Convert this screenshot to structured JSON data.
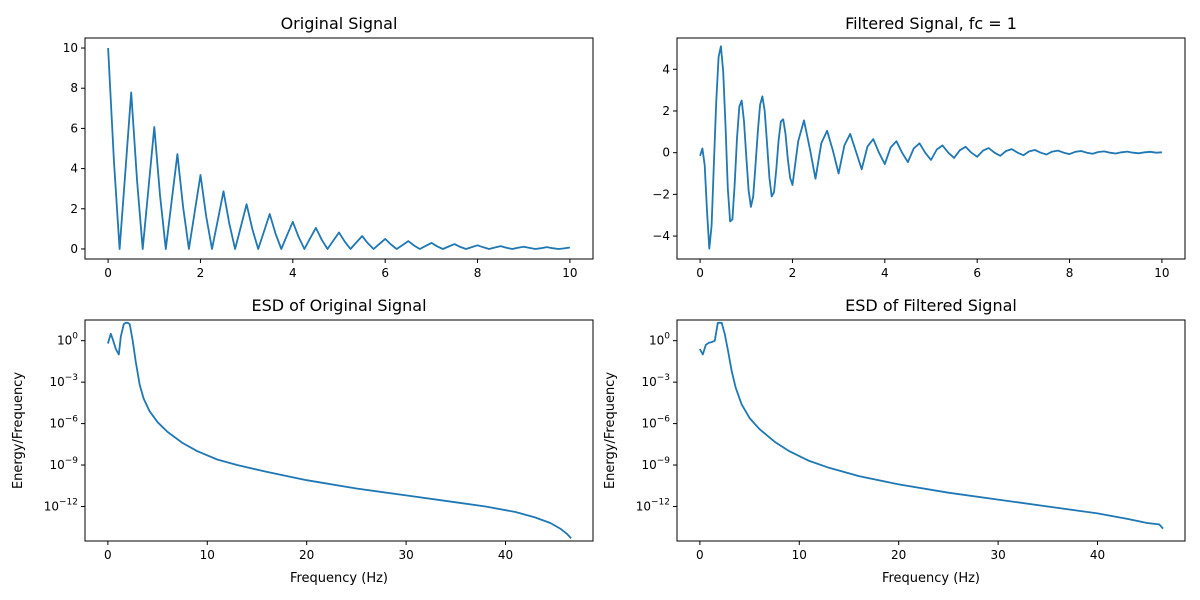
{
  "chart_data": [
    {
      "type": "line",
      "title": "Original Signal",
      "xlabel": "",
      "ylabel": "",
      "xlim": [
        -0.5,
        10.5
      ],
      "ylim": [
        -0.5,
        10.5
      ],
      "xticks": [
        0,
        2,
        4,
        6,
        8,
        10
      ],
      "xtick_labels": [
        "0",
        "2",
        "4",
        "6",
        "8",
        "10"
      ],
      "yticks": [
        0,
        2,
        4,
        6,
        8,
        10
      ],
      "ytick_labels": [
        "0",
        "2",
        "4",
        "6",
        "8",
        "10"
      ],
      "yscale": "linear",
      "grid": false,
      "color": "#1f77b4",
      "x": [
        0,
        0.125,
        0.25,
        0.375,
        0.5,
        0.625,
        0.75,
        0.875,
        1.0,
        1.125,
        1.25,
        1.375,
        1.5,
        1.625,
        1.75,
        1.875,
        2.0,
        2.125,
        2.25,
        2.375,
        2.5,
        2.625,
        2.75,
        2.875,
        3.0,
        3.125,
        3.25,
        3.375,
        3.5,
        3.625,
        3.75,
        3.875,
        4.0,
        4.125,
        4.25,
        4.375,
        4.5,
        4.625,
        4.75,
        4.875,
        5.0,
        5.125,
        5.25,
        5.375,
        5.5,
        5.625,
        5.75,
        5.875,
        6.0,
        6.125,
        6.25,
        6.375,
        6.5,
        6.625,
        6.75,
        6.875,
        7.0,
        7.125,
        7.25,
        7.375,
        7.5,
        7.625,
        7.75,
        7.875,
        8.0,
        8.125,
        8.25,
        8.375,
        8.5,
        8.625,
        8.75,
        8.875,
        9.0,
        9.125,
        9.25,
        9.375,
        9.5,
        9.625,
        9.75,
        9.875,
        10.0
      ],
      "y": [
        10.0,
        4.41,
        0.0,
        3.87,
        7.79,
        3.44,
        0.0,
        3.03,
        6.07,
        2.68,
        0.0,
        2.36,
        4.72,
        2.09,
        0.0,
        1.84,
        3.68,
        1.62,
        0.0,
        1.43,
        2.87,
        1.26,
        0.0,
        1.12,
        2.23,
        0.98,
        0.0,
        0.87,
        1.74,
        0.77,
        0.0,
        0.68,
        1.35,
        0.6,
        0.0,
        0.53,
        1.05,
        0.46,
        0.0,
        0.41,
        0.82,
        0.36,
        0.0,
        0.32,
        0.64,
        0.28,
        0.0,
        0.25,
        0.5,
        0.22,
        0.0,
        0.19,
        0.39,
        0.17,
        0.0,
        0.15,
        0.3,
        0.13,
        0.0,
        0.12,
        0.24,
        0.1,
        0.0,
        0.09,
        0.18,
        0.08,
        0.0,
        0.07,
        0.14,
        0.06,
        0.0,
        0.06,
        0.11,
        0.05,
        0.0,
        0.04,
        0.09,
        0.04,
        0.0,
        0.03,
        0.07
      ]
    },
    {
      "type": "line",
      "title": "Filtered Signal, fc = 1",
      "xlabel": "",
      "ylabel": "",
      "xlim": [
        -0.5,
        10.5
      ],
      "ylim": [
        -5.1,
        5.5
      ],
      "xticks": [
        0,
        2,
        4,
        6,
        8,
        10
      ],
      "xtick_labels": [
        "0",
        "2",
        "4",
        "6",
        "8",
        "10"
      ],
      "yticks": [
        -4,
        -2,
        0,
        2,
        4
      ],
      "ytick_labels": [
        "−4",
        "−2",
        "0",
        "2",
        "4"
      ],
      "yscale": "linear",
      "grid": false,
      "color": "#1f77b4",
      "x": [
        0,
        0.05,
        0.1,
        0.15,
        0.2,
        0.25,
        0.3,
        0.35,
        0.4,
        0.45,
        0.5,
        0.55,
        0.6,
        0.65,
        0.7,
        0.75,
        0.8,
        0.85,
        0.9,
        0.95,
        1.0,
        1.05,
        1.1,
        1.15,
        1.2,
        1.25,
        1.3,
        1.35,
        1.4,
        1.45,
        1.5,
        1.55,
        1.6,
        1.65,
        1.7,
        1.75,
        1.8,
        1.85,
        1.9,
        1.95,
        2.0,
        2.125,
        2.25,
        2.375,
        2.5,
        2.625,
        2.75,
        2.875,
        3.0,
        3.125,
        3.25,
        3.375,
        3.5,
        3.625,
        3.75,
        3.875,
        4.0,
        4.125,
        4.25,
        4.375,
        4.5,
        4.625,
        4.75,
        4.875,
        5.0,
        5.125,
        5.25,
        5.375,
        5.5,
        5.625,
        5.75,
        5.875,
        6.0,
        6.125,
        6.25,
        6.375,
        6.5,
        6.625,
        6.75,
        6.875,
        7.0,
        7.125,
        7.25,
        7.375,
        7.5,
        7.625,
        7.75,
        7.875,
        8.0,
        8.125,
        8.25,
        8.375,
        8.5,
        8.625,
        8.75,
        8.875,
        9.0,
        9.125,
        9.25,
        9.375,
        9.5,
        9.625,
        9.75,
        9.875,
        10.0
      ],
      "y": [
        -0.15,
        0.2,
        -0.6,
        -2.8,
        -4.6,
        -3.5,
        -0.5,
        2.5,
        4.6,
        5.1,
        3.9,
        1.3,
        -1.7,
        -3.3,
        -3.2,
        -1.5,
        0.7,
        2.2,
        2.5,
        1.5,
        -0.2,
        -1.8,
        -2.6,
        -2.1,
        -0.6,
        1.0,
        2.3,
        2.7,
        2.0,
        0.4,
        -1.2,
        -2.1,
        -1.9,
        -0.8,
        0.6,
        1.5,
        1.6,
        0.9,
        -0.3,
        -1.2,
        -1.55,
        0.55,
        1.55,
        0.2,
        -1.25,
        0.45,
        1.05,
        0.1,
        -1.0,
        0.35,
        0.9,
        0.05,
        -0.8,
        0.3,
        0.65,
        0.0,
        -0.55,
        0.25,
        0.55,
        0.0,
        -0.45,
        0.2,
        0.45,
        0.0,
        -0.35,
        0.15,
        0.35,
        0.0,
        -0.25,
        0.12,
        0.28,
        0.0,
        -0.2,
        0.1,
        0.22,
        0.0,
        -0.15,
        0.08,
        0.17,
        0.0,
        -0.12,
        0.06,
        0.13,
        0.0,
        -0.09,
        0.05,
        0.1,
        0.0,
        -0.07,
        0.04,
        0.08,
        0.0,
        -0.05,
        0.03,
        0.06,
        0.0,
        -0.04,
        0.02,
        0.05,
        0.0,
        -0.03,
        0.02,
        0.04,
        0.0,
        0.02
      ]
    },
    {
      "type": "line",
      "title": "ESD of Original Signal",
      "xlabel": "Frequency (Hz)",
      "ylabel": "Energy/Frequency",
      "xlim": [
        -2.3,
        48.8
      ],
      "ylim": [
        -14.5,
        1.5
      ],
      "yscale": "log",
      "xticks": [
        0,
        10,
        20,
        30,
        40
      ],
      "xtick_labels": [
        "0",
        "10",
        "20",
        "30",
        "40"
      ],
      "yticks": [
        0,
        -3,
        -6,
        -9,
        -12
      ],
      "ytick_labels": [
        "10",
        "10",
        "10",
        "10",
        "10"
      ],
      "ytick_exponents": [
        "0",
        "−3",
        "−6",
        "−9",
        "−12"
      ],
      "grid": false,
      "color": "#1f77b4",
      "x": [
        0,
        0.3,
        0.5,
        0.8,
        1.1,
        1.3,
        1.6,
        1.8,
        2.0,
        2.2,
        2.5,
        2.8,
        3.2,
        3.6,
        4.2,
        5.0,
        6.0,
        7.5,
        9.0,
        11,
        13,
        16,
        20,
        25,
        30,
        35,
        38,
        41,
        43,
        44.5,
        45.5,
        46.2,
        46.6
      ],
      "y": [
        -0.2,
        0.5,
        0.1,
        -0.6,
        -1.0,
        0.3,
        1.2,
        1.3,
        1.3,
        1.2,
        0.0,
        -1.5,
        -3.2,
        -4.2,
        -5.1,
        -5.9,
        -6.6,
        -7.4,
        -8.0,
        -8.6,
        -9.0,
        -9.5,
        -10.1,
        -10.7,
        -11.2,
        -11.7,
        -12.0,
        -12.4,
        -12.8,
        -13.2,
        -13.6,
        -14.0,
        -14.3
      ]
    },
    {
      "type": "line",
      "title": "ESD of Filtered Signal",
      "xlabel": "Frequency (Hz)",
      "ylabel": "Energy/Frequency",
      "xlim": [
        -2.3,
        48.8
      ],
      "ylim": [
        -14.5,
        1.5
      ],
      "yscale": "log",
      "xticks": [
        0,
        10,
        20,
        30,
        40
      ],
      "xtick_labels": [
        "0",
        "10",
        "20",
        "30",
        "40"
      ],
      "yticks": [
        0,
        -3,
        -6,
        -9,
        -12
      ],
      "ytick_labels": [
        "10",
        "10",
        "10",
        "10",
        "10"
      ],
      "ytick_exponents": [
        "0",
        "−3",
        "−6",
        "−9",
        "−12"
      ],
      "grid": false,
      "color": "#1f77b4",
      "x": [
        0,
        0.3,
        0.6,
        0.9,
        1.2,
        1.5,
        1.8,
        2.0,
        2.2,
        2.5,
        2.8,
        3.2,
        3.6,
        4.2,
        5.0,
        6.0,
        7.5,
        9.0,
        11,
        13,
        16,
        20,
        25,
        30,
        35,
        40,
        43,
        45,
        46.2,
        46.6
      ],
      "y": [
        -0.6,
        -1.0,
        -0.3,
        -0.15,
        -0.1,
        0.0,
        1.3,
        1.3,
        1.3,
        0.5,
        -0.6,
        -2.2,
        -3.4,
        -4.6,
        -5.6,
        -6.4,
        -7.3,
        -8.0,
        -8.7,
        -9.2,
        -9.8,
        -10.4,
        -11.0,
        -11.5,
        -12.0,
        -12.5,
        -12.9,
        -13.2,
        -13.3,
        -13.6
      ]
    }
  ]
}
